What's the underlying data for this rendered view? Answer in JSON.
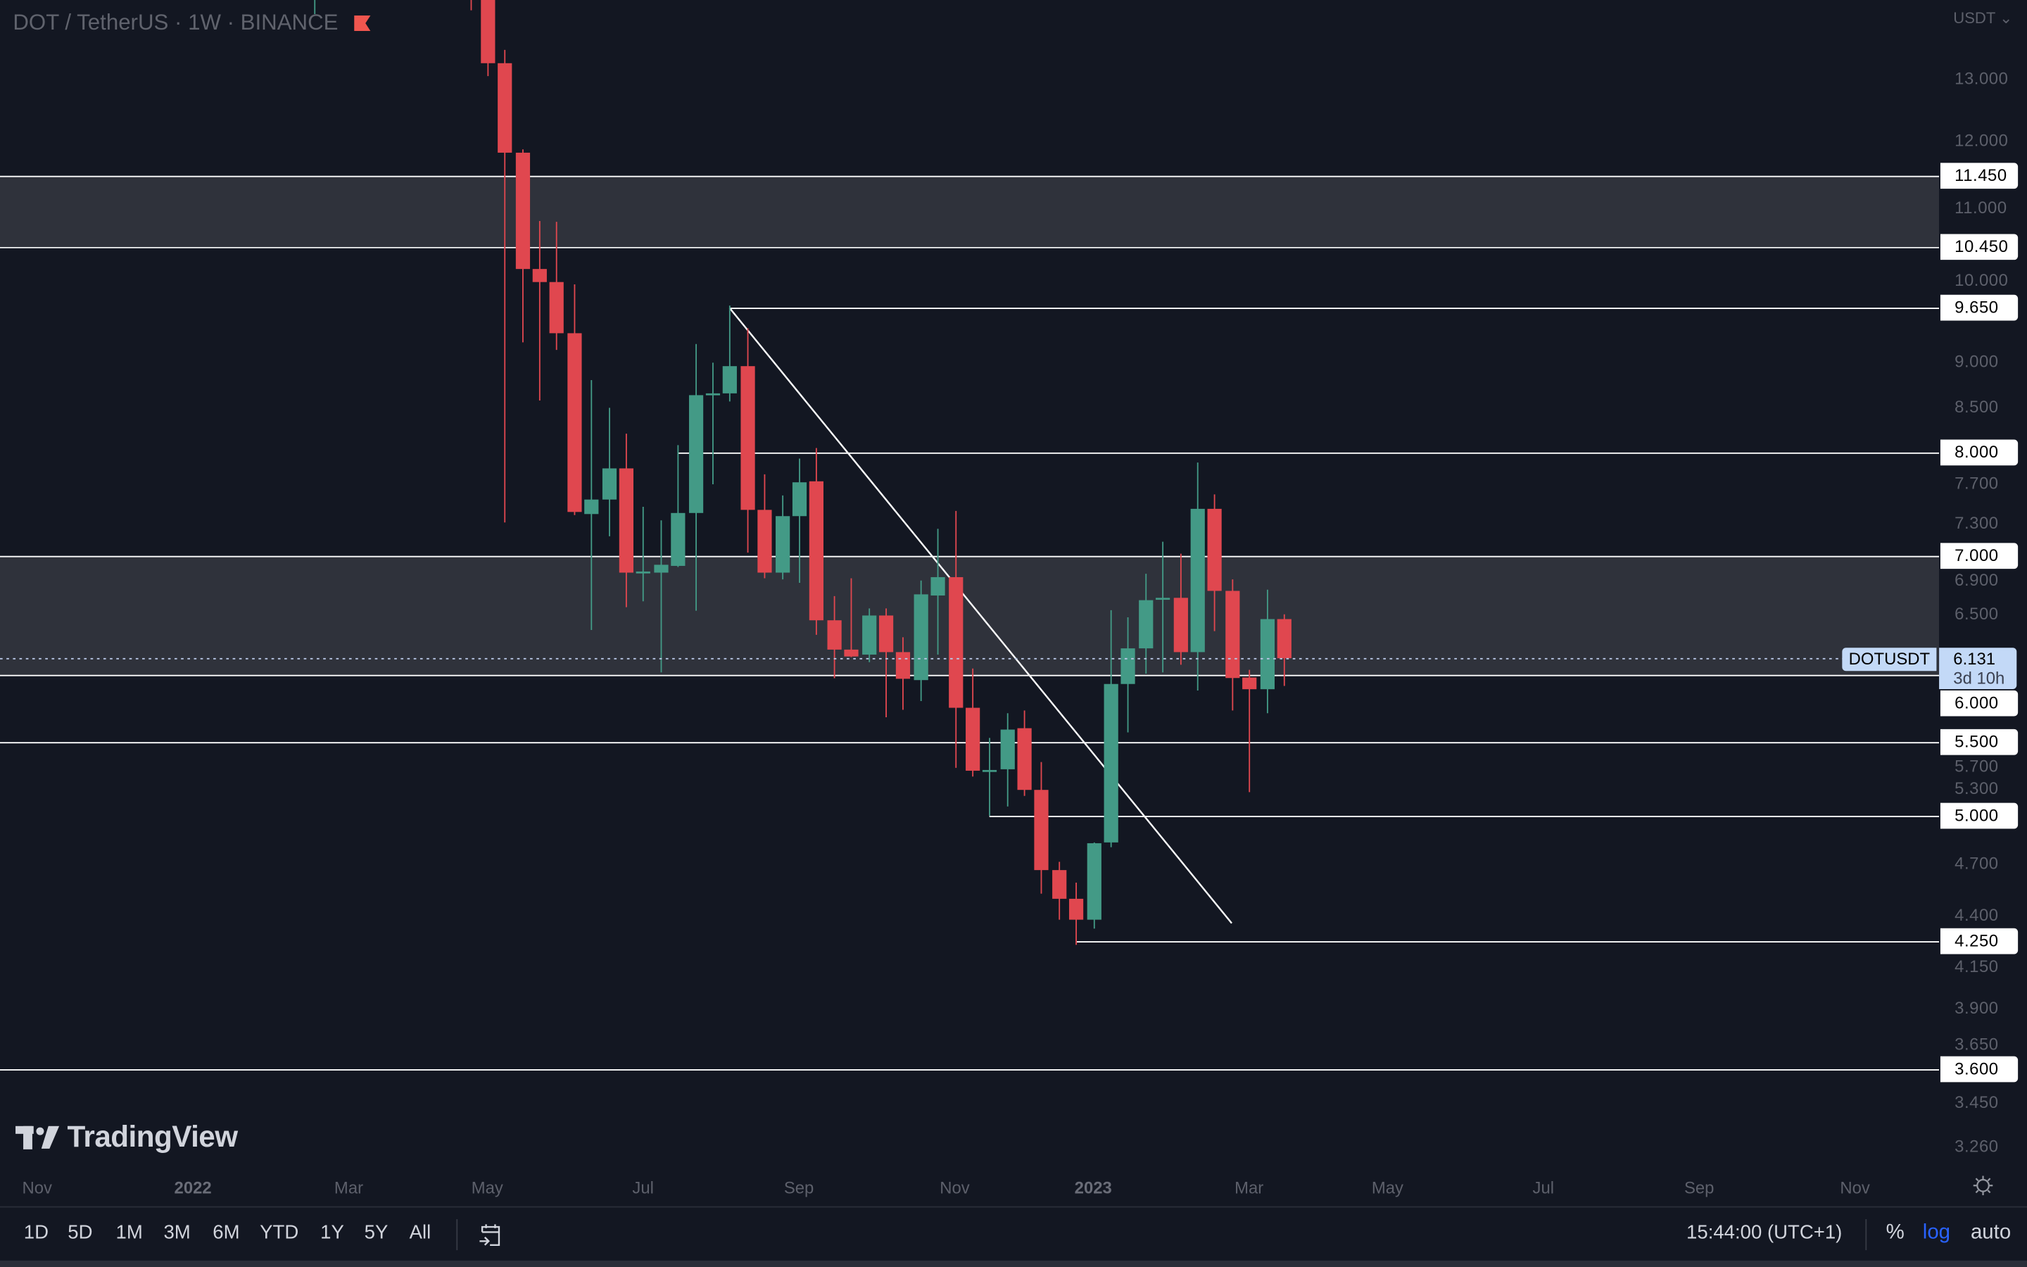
{
  "header": {
    "title": "DOT / TetherUS · 1W · BINANCE",
    "flag_icon": "red-flag-icon",
    "flag_color": "#f0564f"
  },
  "colors": {
    "background": "#131722",
    "up": "#439a86",
    "down": "#e0474f",
    "zone": "#2f323b",
    "line": "#ffffff",
    "current": "#c3d9f7",
    "log_active": "#2962ff"
  },
  "price_axis": {
    "currency": "USDT",
    "ticks": [
      "13.000",
      "12.000",
      "11.000",
      "10.000",
      "9.000",
      "8.500",
      "7.700",
      "7.300",
      "6.900",
      "6.500",
      "5.700",
      "5.300",
      "4.700",
      "4.400",
      "4.150",
      "3.900",
      "3.650",
      "3.450",
      "3.260"
    ]
  },
  "current_price": {
    "symbol": "DOTUSDT",
    "price": "6.131",
    "countdown": "3d 10h"
  },
  "chart_data": {
    "type": "candlestick",
    "title": "DOT / TetherUS · 1W · BINANCE",
    "scale": "log",
    "ylim": [
      3.16,
      14.38
    ],
    "xlim": [
      "2021-10-17",
      "2023-12-10"
    ],
    "grid": false,
    "candles_columns": [
      "date",
      "open",
      "high",
      "low",
      "close"
    ],
    "candles": [
      [
        "2022-02-21",
        15.0,
        18.2,
        14.12,
        17.5
      ],
      [
        "2022-04-25",
        17.8,
        18.3,
        14.19,
        15.3
      ],
      [
        "2022-05-02",
        15.3,
        15.6,
        13.03,
        13.25
      ],
      [
        "2022-05-09",
        13.25,
        13.48,
        7.31,
        11.8
      ],
      [
        "2022-05-16",
        11.8,
        11.85,
        9.23,
        10.15
      ],
      [
        "2022-05-23",
        10.15,
        10.8,
        8.56,
        9.98
      ],
      [
        "2022-05-30",
        9.98,
        10.79,
        9.14,
        9.34
      ],
      [
        "2022-06-06",
        9.34,
        9.95,
        7.38,
        7.41
      ],
      [
        "2022-06-13",
        7.39,
        8.79,
        6.36,
        7.53
      ],
      [
        "2022-06-20",
        7.53,
        8.48,
        7.18,
        7.84
      ],
      [
        "2022-06-27",
        7.84,
        8.2,
        6.55,
        6.85
      ],
      [
        "2022-07-04",
        6.85,
        7.46,
        6.6,
        6.86
      ],
      [
        "2022-07-11",
        6.85,
        7.33,
        6.02,
        6.92
      ],
      [
        "2022-07-18",
        6.91,
        8.08,
        6.9,
        7.4
      ],
      [
        "2022-07-25",
        7.4,
        9.21,
        6.52,
        8.62
      ],
      [
        "2022-08-01",
        8.63,
        8.99,
        7.68,
        8.64
      ],
      [
        "2022-08-08",
        8.64,
        9.68,
        8.55,
        8.95
      ],
      [
        "2022-08-15",
        8.95,
        9.4,
        7.03,
        7.43
      ],
      [
        "2022-08-22",
        7.43,
        7.78,
        6.8,
        6.85
      ],
      [
        "2022-08-29",
        6.85,
        7.57,
        6.79,
        7.37
      ],
      [
        "2022-09-05",
        7.37,
        7.94,
        6.76,
        7.7
      ],
      [
        "2022-09-12",
        7.71,
        8.05,
        6.32,
        6.44
      ],
      [
        "2022-09-19",
        6.44,
        6.645,
        5.975,
        6.2
      ],
      [
        "2022-09-26",
        6.2,
        6.8,
        6.14,
        6.145
      ],
      [
        "2022-10-03",
        6.16,
        6.54,
        6.1,
        6.48
      ],
      [
        "2022-10-10",
        6.48,
        6.54,
        5.68,
        6.18
      ],
      [
        "2022-10-17",
        6.18,
        6.3,
        5.735,
        5.97
      ],
      [
        "2022-10-24",
        5.96,
        6.78,
        5.8,
        6.66
      ],
      [
        "2022-10-31",
        6.65,
        7.25,
        6.16,
        6.81
      ],
      [
        "2022-11-07",
        6.81,
        7.42,
        5.32,
        5.75
      ],
      [
        "2022-11-14",
        5.75,
        6.05,
        5.26,
        5.3
      ],
      [
        "2022-11-21",
        5.3,
        5.53,
        5.0,
        5.305
      ],
      [
        "2022-11-28",
        5.31,
        5.71,
        5.06,
        5.59
      ],
      [
        "2022-12-05",
        5.6,
        5.73,
        5.13,
        5.17
      ],
      [
        "2022-12-12",
        5.17,
        5.36,
        4.52,
        4.66
      ],
      [
        "2022-12-19",
        4.66,
        4.71,
        4.37,
        4.49
      ],
      [
        "2022-12-26",
        4.49,
        4.585,
        4.23,
        4.37
      ],
      [
        "2023-01-02",
        4.37,
        4.83,
        4.32,
        4.825
      ],
      [
        "2023-01-09",
        4.83,
        6.525,
        4.8,
        5.93
      ],
      [
        "2023-01-16",
        5.93,
        6.465,
        5.57,
        6.21
      ],
      [
        "2023-01-23",
        6.21,
        6.84,
        6.01,
        6.61
      ],
      [
        "2023-01-30",
        6.615,
        7.13,
        6.02,
        6.63
      ],
      [
        "2023-02-06",
        6.63,
        7.02,
        6.08,
        6.18
      ],
      [
        "2023-02-13",
        6.18,
        7.9,
        5.88,
        7.44
      ],
      [
        "2023-02-20",
        7.44,
        7.58,
        6.35,
        6.69
      ],
      [
        "2023-02-27",
        6.69,
        6.79,
        5.73,
        5.976
      ],
      [
        "2023-03-06",
        5.98,
        6.04,
        5.155,
        5.89
      ],
      [
        "2023-03-13",
        5.89,
        6.7,
        5.71,
        6.45
      ],
      [
        "2023-03-20",
        6.45,
        6.49,
        5.915,
        6.131
      ]
    ],
    "zones": [
      {
        "low": 10.45,
        "high": 11.45
      },
      {
        "low": 6.0,
        "high": 7.0
      }
    ],
    "levels": [
      {
        "label": "11.450",
        "price": 11.45,
        "from": null
      },
      {
        "label": "10.450",
        "price": 10.45,
        "from": null
      },
      {
        "label": "9.650",
        "price": 9.65,
        "from": "2022-08-08"
      },
      {
        "label": "8.000",
        "price": 8.0,
        "from": "2022-07-18"
      },
      {
        "label": "7.000",
        "price": 7.0,
        "from": null
      },
      {
        "label": "6.000",
        "price": 6.0,
        "from": null
      },
      {
        "label": "5.500",
        "price": 5.5,
        "from": null
      },
      {
        "label": "5.000",
        "price": 5.0,
        "from": "2022-11-21"
      },
      {
        "label": "4.250",
        "price": 4.25,
        "from": "2022-12-26"
      },
      {
        "label": "3.600",
        "price": 3.6,
        "from": null
      }
    ],
    "trendline": {
      "from": [
        "2022-08-08",
        9.65
      ],
      "to": [
        "2023-02-27",
        4.35
      ]
    },
    "time_labels": [
      {
        "label": "Nov",
        "date": "2021-11-01",
        "year": false
      },
      {
        "label": "2022",
        "date": "2022-01-03",
        "year": true
      },
      {
        "label": "Mar",
        "date": "2022-03-07",
        "year": false
      },
      {
        "label": "May",
        "date": "2022-05-02",
        "year": false
      },
      {
        "label": "Jul",
        "date": "2022-07-04",
        "year": false
      },
      {
        "label": "Sep",
        "date": "2022-09-05",
        "year": false
      },
      {
        "label": "Nov",
        "date": "2022-11-07",
        "year": false
      },
      {
        "label": "2023",
        "date": "2023-01-02",
        "year": true
      },
      {
        "label": "Mar",
        "date": "2023-03-06",
        "year": false
      },
      {
        "label": "May",
        "date": "2023-05-01",
        "year": false
      },
      {
        "label": "Jul",
        "date": "2023-07-03",
        "year": false
      },
      {
        "label": "Sep",
        "date": "2023-09-04",
        "year": false
      },
      {
        "label": "Nov",
        "date": "2023-11-06",
        "year": false
      }
    ]
  },
  "branding": {
    "logo": "TradingView"
  },
  "toolbar": {
    "ranges": [
      "1D",
      "5D",
      "1M",
      "3M",
      "6M",
      "YTD",
      "1Y",
      "5Y",
      "All"
    ],
    "goto_icon": "calendar-goto-icon",
    "clock": "15:44:00 (UTC+1)",
    "percent": "%",
    "log": "log",
    "auto": "auto",
    "settings_icon": "gear-icon"
  }
}
